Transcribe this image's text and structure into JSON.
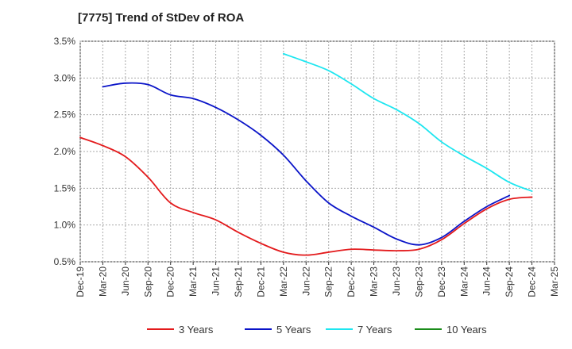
{
  "chart_data": {
    "type": "line",
    "title": "[7775]  Trend of StDev of ROA",
    "x_labels": [
      "Dec-19",
      "Mar-20",
      "Jun-20",
      "Sep-20",
      "Dec-20",
      "Mar-21",
      "Jun-21",
      "Sep-21",
      "Dec-21",
      "Mar-22",
      "Jun-22",
      "Sep-22",
      "Dec-22",
      "Mar-23",
      "Jun-23",
      "Sep-23",
      "Dec-23",
      "Mar-24",
      "Jun-24",
      "Sep-24",
      "Dec-24",
      "Mar-25"
    ],
    "y_ticks": [
      "0.5%",
      "1.0%",
      "1.5%",
      "2.0%",
      "2.5%",
      "3.0%",
      "3.5%"
    ],
    "ylim": [
      0.5,
      3.5
    ],
    "grid": true,
    "legend_position": "bottom",
    "series": [
      {
        "name": "3 Years",
        "color": "#e31a1c",
        "start_index": 0,
        "values": [
          2.19,
          2.08,
          1.93,
          1.65,
          1.3,
          1.17,
          1.07,
          0.9,
          0.75,
          0.63,
          0.59,
          0.63,
          0.67,
          0.66,
          0.65,
          0.67,
          0.8,
          1.02,
          1.22,
          1.35,
          1.38
        ]
      },
      {
        "name": "5 Years",
        "color": "#0a14c8",
        "start_index": 1,
        "values": [
          2.88,
          2.93,
          2.91,
          2.77,
          2.72,
          2.6,
          2.43,
          2.22,
          1.95,
          1.6,
          1.3,
          1.12,
          0.97,
          0.81,
          0.73,
          0.83,
          1.05,
          1.25,
          1.4
        ]
      },
      {
        "name": "7 Years",
        "color": "#1ee6f0",
        "start_index": 9,
        "values": [
          3.33,
          3.22,
          3.1,
          2.92,
          2.72,
          2.57,
          2.38,
          2.13,
          1.94,
          1.77,
          1.58,
          1.46
        ]
      },
      {
        "name": "10 Years",
        "color": "#1a8c1a",
        "start_index": 0,
        "values": []
      }
    ]
  }
}
